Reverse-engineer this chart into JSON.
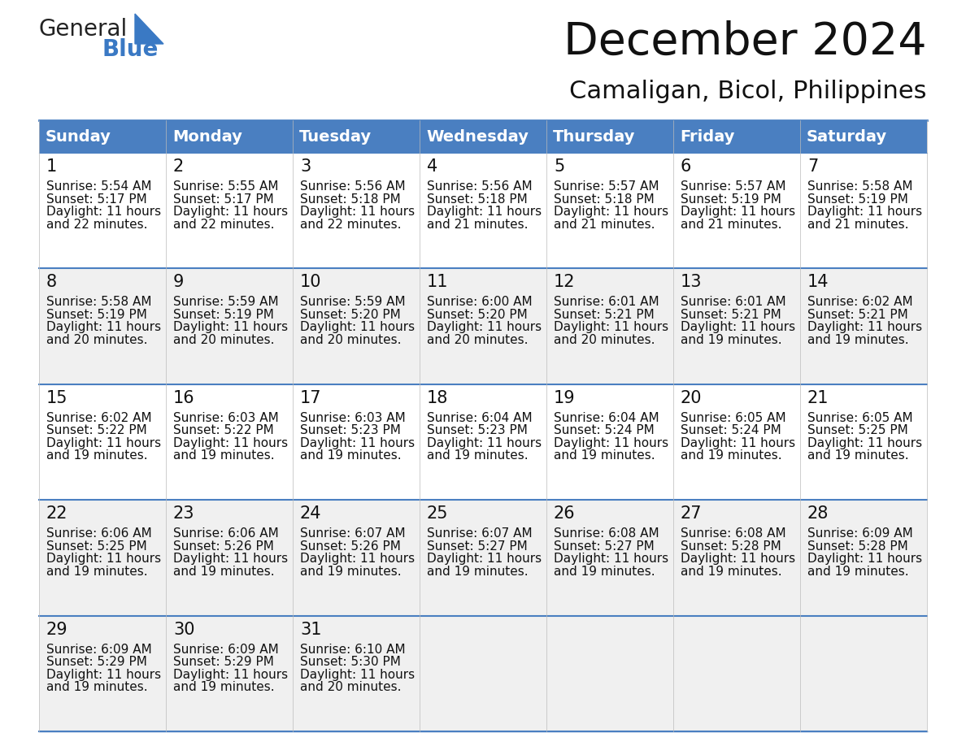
{
  "title": "December 2024",
  "subtitle": "Camaligan, Bicol, Philippines",
  "header_color": "#4a7fc1",
  "header_text_color": "#FFFFFF",
  "day_names": [
    "Sunday",
    "Monday",
    "Tuesday",
    "Wednesday",
    "Thursday",
    "Friday",
    "Saturday"
  ],
  "bg_color": "#FFFFFF",
  "row_bg": [
    "#FFFFFF",
    "#F0F0F0",
    "#FFFFFF",
    "#F0F0F0",
    "#F0F0F0"
  ],
  "border_color": "#4a7fc1",
  "row_border_color": "#4a7fc1",
  "text_color": "#111111",
  "days": [
    {
      "day": 1,
      "col": 0,
      "row": 0,
      "sunrise": "5:54 AM",
      "sunset": "5:17 PM",
      "daylight_line1": "Daylight: 11 hours",
      "daylight_line2": "and 22 minutes."
    },
    {
      "day": 2,
      "col": 1,
      "row": 0,
      "sunrise": "5:55 AM",
      "sunset": "5:17 PM",
      "daylight_line1": "Daylight: 11 hours",
      "daylight_line2": "and 22 minutes."
    },
    {
      "day": 3,
      "col": 2,
      "row": 0,
      "sunrise": "5:56 AM",
      "sunset": "5:18 PM",
      "daylight_line1": "Daylight: 11 hours",
      "daylight_line2": "and 22 minutes."
    },
    {
      "day": 4,
      "col": 3,
      "row": 0,
      "sunrise": "5:56 AM",
      "sunset": "5:18 PM",
      "daylight_line1": "Daylight: 11 hours",
      "daylight_line2": "and 21 minutes."
    },
    {
      "day": 5,
      "col": 4,
      "row": 0,
      "sunrise": "5:57 AM",
      "sunset": "5:18 PM",
      "daylight_line1": "Daylight: 11 hours",
      "daylight_line2": "and 21 minutes."
    },
    {
      "day": 6,
      "col": 5,
      "row": 0,
      "sunrise": "5:57 AM",
      "sunset": "5:19 PM",
      "daylight_line1": "Daylight: 11 hours",
      "daylight_line2": "and 21 minutes."
    },
    {
      "day": 7,
      "col": 6,
      "row": 0,
      "sunrise": "5:58 AM",
      "sunset": "5:19 PM",
      "daylight_line1": "Daylight: 11 hours",
      "daylight_line2": "and 21 minutes."
    },
    {
      "day": 8,
      "col": 0,
      "row": 1,
      "sunrise": "5:58 AM",
      "sunset": "5:19 PM",
      "daylight_line1": "Daylight: 11 hours",
      "daylight_line2": "and 20 minutes."
    },
    {
      "day": 9,
      "col": 1,
      "row": 1,
      "sunrise": "5:59 AM",
      "sunset": "5:19 PM",
      "daylight_line1": "Daylight: 11 hours",
      "daylight_line2": "and 20 minutes."
    },
    {
      "day": 10,
      "col": 2,
      "row": 1,
      "sunrise": "5:59 AM",
      "sunset": "5:20 PM",
      "daylight_line1": "Daylight: 11 hours",
      "daylight_line2": "and 20 minutes."
    },
    {
      "day": 11,
      "col": 3,
      "row": 1,
      "sunrise": "6:00 AM",
      "sunset": "5:20 PM",
      "daylight_line1": "Daylight: 11 hours",
      "daylight_line2": "and 20 minutes."
    },
    {
      "day": 12,
      "col": 4,
      "row": 1,
      "sunrise": "6:01 AM",
      "sunset": "5:21 PM",
      "daylight_line1": "Daylight: 11 hours",
      "daylight_line2": "and 20 minutes."
    },
    {
      "day": 13,
      "col": 5,
      "row": 1,
      "sunrise": "6:01 AM",
      "sunset": "5:21 PM",
      "daylight_line1": "Daylight: 11 hours",
      "daylight_line2": "and 19 minutes."
    },
    {
      "day": 14,
      "col": 6,
      "row": 1,
      "sunrise": "6:02 AM",
      "sunset": "5:21 PM",
      "daylight_line1": "Daylight: 11 hours",
      "daylight_line2": "and 19 minutes."
    },
    {
      "day": 15,
      "col": 0,
      "row": 2,
      "sunrise": "6:02 AM",
      "sunset": "5:22 PM",
      "daylight_line1": "Daylight: 11 hours",
      "daylight_line2": "and 19 minutes."
    },
    {
      "day": 16,
      "col": 1,
      "row": 2,
      "sunrise": "6:03 AM",
      "sunset": "5:22 PM",
      "daylight_line1": "Daylight: 11 hours",
      "daylight_line2": "and 19 minutes."
    },
    {
      "day": 17,
      "col": 2,
      "row": 2,
      "sunrise": "6:03 AM",
      "sunset": "5:23 PM",
      "daylight_line1": "Daylight: 11 hours",
      "daylight_line2": "and 19 minutes."
    },
    {
      "day": 18,
      "col": 3,
      "row": 2,
      "sunrise": "6:04 AM",
      "sunset": "5:23 PM",
      "daylight_line1": "Daylight: 11 hours",
      "daylight_line2": "and 19 minutes."
    },
    {
      "day": 19,
      "col": 4,
      "row": 2,
      "sunrise": "6:04 AM",
      "sunset": "5:24 PM",
      "daylight_line1": "Daylight: 11 hours",
      "daylight_line2": "and 19 minutes."
    },
    {
      "day": 20,
      "col": 5,
      "row": 2,
      "sunrise": "6:05 AM",
      "sunset": "5:24 PM",
      "daylight_line1": "Daylight: 11 hours",
      "daylight_line2": "and 19 minutes."
    },
    {
      "day": 21,
      "col": 6,
      "row": 2,
      "sunrise": "6:05 AM",
      "sunset": "5:25 PM",
      "daylight_line1": "Daylight: 11 hours",
      "daylight_line2": "and 19 minutes."
    },
    {
      "day": 22,
      "col": 0,
      "row": 3,
      "sunrise": "6:06 AM",
      "sunset": "5:25 PM",
      "daylight_line1": "Daylight: 11 hours",
      "daylight_line2": "and 19 minutes."
    },
    {
      "day": 23,
      "col": 1,
      "row": 3,
      "sunrise": "6:06 AM",
      "sunset": "5:26 PM",
      "daylight_line1": "Daylight: 11 hours",
      "daylight_line2": "and 19 minutes."
    },
    {
      "day": 24,
      "col": 2,
      "row": 3,
      "sunrise": "6:07 AM",
      "sunset": "5:26 PM",
      "daylight_line1": "Daylight: 11 hours",
      "daylight_line2": "and 19 minutes."
    },
    {
      "day": 25,
      "col": 3,
      "row": 3,
      "sunrise": "6:07 AM",
      "sunset": "5:27 PM",
      "daylight_line1": "Daylight: 11 hours",
      "daylight_line2": "and 19 minutes."
    },
    {
      "day": 26,
      "col": 4,
      "row": 3,
      "sunrise": "6:08 AM",
      "sunset": "5:27 PM",
      "daylight_line1": "Daylight: 11 hours",
      "daylight_line2": "and 19 minutes."
    },
    {
      "day": 27,
      "col": 5,
      "row": 3,
      "sunrise": "6:08 AM",
      "sunset": "5:28 PM",
      "daylight_line1": "Daylight: 11 hours",
      "daylight_line2": "and 19 minutes."
    },
    {
      "day": 28,
      "col": 6,
      "row": 3,
      "sunrise": "6:09 AM",
      "sunset": "5:28 PM",
      "daylight_line1": "Daylight: 11 hours",
      "daylight_line2": "and 19 minutes."
    },
    {
      "day": 29,
      "col": 0,
      "row": 4,
      "sunrise": "6:09 AM",
      "sunset": "5:29 PM",
      "daylight_line1": "Daylight: 11 hours",
      "daylight_line2": "and 19 minutes."
    },
    {
      "day": 30,
      "col": 1,
      "row": 4,
      "sunrise": "6:09 AM",
      "sunset": "5:29 PM",
      "daylight_line1": "Daylight: 11 hours",
      "daylight_line2": "and 19 minutes."
    },
    {
      "day": 31,
      "col": 2,
      "row": 4,
      "sunrise": "6:10 AM",
      "sunset": "5:30 PM",
      "daylight_line1": "Daylight: 11 hours",
      "daylight_line2": "and 20 minutes."
    }
  ],
  "logo_general_color": "#222222",
  "logo_blue_color": "#3a79c4",
  "title_fontsize": 40,
  "subtitle_fontsize": 22,
  "header_fontsize": 14,
  "day_num_fontsize": 15,
  "cell_text_fontsize": 11
}
